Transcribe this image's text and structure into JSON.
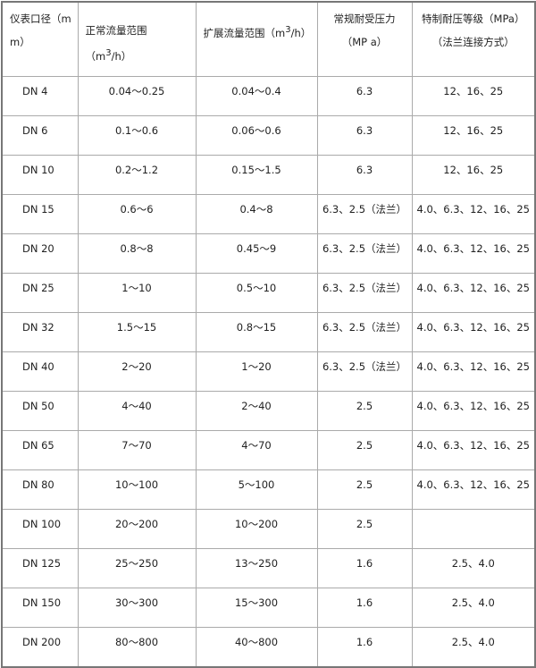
{
  "table": {
    "headers": [
      "仪表口径（mm）",
      "正常流量范围（m3/h）",
      "扩展流量范围（m3/h）",
      "常规耐受压力（MPa）",
      "特制耐压等级（MPa）（法兰连接方式）"
    ],
    "header_parts": {
      "col0": "仪表口径（m m）",
      "col1_pre": "正常流量范围（m",
      "col1_sup": "3",
      "col1_post": "/h）",
      "col2_pre": "扩展流量范围（m",
      "col2_sup": "3",
      "col2_post": "/h）",
      "col3": "常规耐受压力（MP a）",
      "col4": "特制耐压等级（MPa）（法兰连接方式）"
    },
    "rows": [
      [
        "DN 4",
        "0.04～0.25",
        "0.04～0.4",
        "6.3",
        "12、16、25"
      ],
      [
        "DN 6",
        "0.1～0.6",
        "0.06～0.6",
        "6.3",
        "12、16、25"
      ],
      [
        "DN 10",
        "0.2～1.2",
        "0.15～1.5",
        "6.3",
        "12、16、25"
      ],
      [
        "DN 15",
        "0.6～6",
        "0.4～8",
        "6.3、2.5（法兰）",
        "4.0、6.3、12、16、25"
      ],
      [
        "DN 20",
        "0.8～8",
        "0.45～9",
        "6.3、2.5（法兰）",
        "4.0、6.3、12、16、25"
      ],
      [
        "DN 25",
        "1～10",
        "0.5～10",
        "6.3、2.5（法兰）",
        "4.0、6.3、12、16、25"
      ],
      [
        "DN 32",
        "1.5～15",
        "0.8～15",
        "6.3、2.5（法兰）",
        "4.0、6.3、12、16、25"
      ],
      [
        "DN 40",
        "2～20",
        "1～20",
        "6.3、2.5（法兰）",
        "4.0、6.3、12、16、25"
      ],
      [
        "DN 50",
        "4～40",
        "2～40",
        "2.5",
        "4.0、6.3、12、16、25"
      ],
      [
        "DN 65",
        "7～70",
        "4～70",
        "2.5",
        "4.0、6.3、12、16、25"
      ],
      [
        "DN 80",
        "10～100",
        "5～100",
        "2.5",
        "4.0、6.3、12、16、25"
      ],
      [
        "DN 100",
        "20～200",
        "10～200",
        "2.5",
        ""
      ],
      [
        "DN 125",
        "25～250",
        "13～250",
        "1.6",
        "2.5、4.0"
      ],
      [
        "DN 150",
        "30～300",
        "15～300",
        "1.6",
        "2.5、4.0"
      ],
      [
        "DN 200",
        "80～800",
        "40～800",
        "1.6",
        "2.5、4.0"
      ]
    ]
  }
}
